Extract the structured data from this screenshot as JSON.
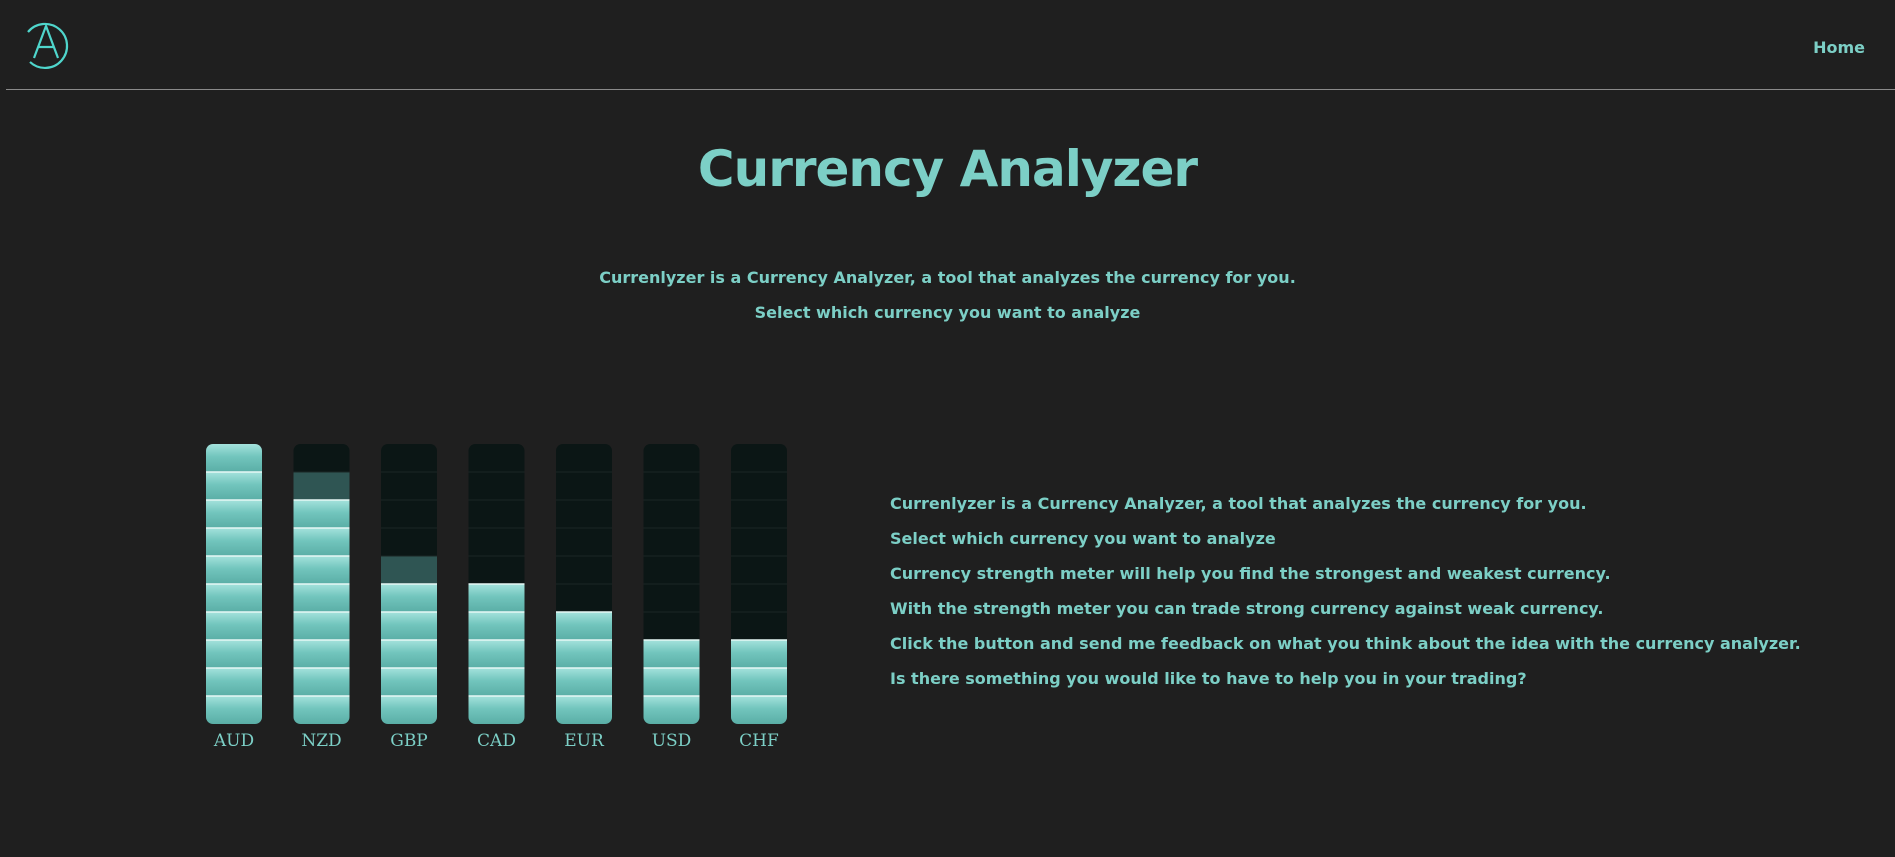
{
  "header": {
    "logo_icon": "letter-a-circle-logo",
    "nav": [
      {
        "label": "Home"
      }
    ]
  },
  "page_title": "Currency Analyzer",
  "intro": [
    "Currenlyzer is a Currency Analyzer, a tool that analyzes the currency for you.",
    "Select which currency you want to analyze"
  ],
  "info": [
    "Currenlyzer is a Currency Analyzer, a tool that analyzes the currency for you.",
    "Select which currency you want to analyze",
    "Currency strength meter will help you find the strongest and weakest currency.",
    "With the strength meter you can trade strong currency against weak currency.",
    "Click the button and send me feedback on what you think about the idea with the currency analyzer.",
    "Is there something you would like to have to help you in your trading?"
  ],
  "colors": {
    "background": "#1f1f1f",
    "accent": "#7ccfc6",
    "bar_empty": "#0b1615",
    "bar_partial": "#2f5553"
  },
  "chart_data": {
    "type": "bar",
    "categories": [
      "AUD",
      "NZD",
      "GBP",
      "CAD",
      "EUR",
      "USD",
      "CHF"
    ],
    "values": [
      10,
      8.5,
      5.5,
      5,
      4,
      3,
      3
    ],
    "ylim": [
      0,
      10
    ],
    "grid": false
  }
}
